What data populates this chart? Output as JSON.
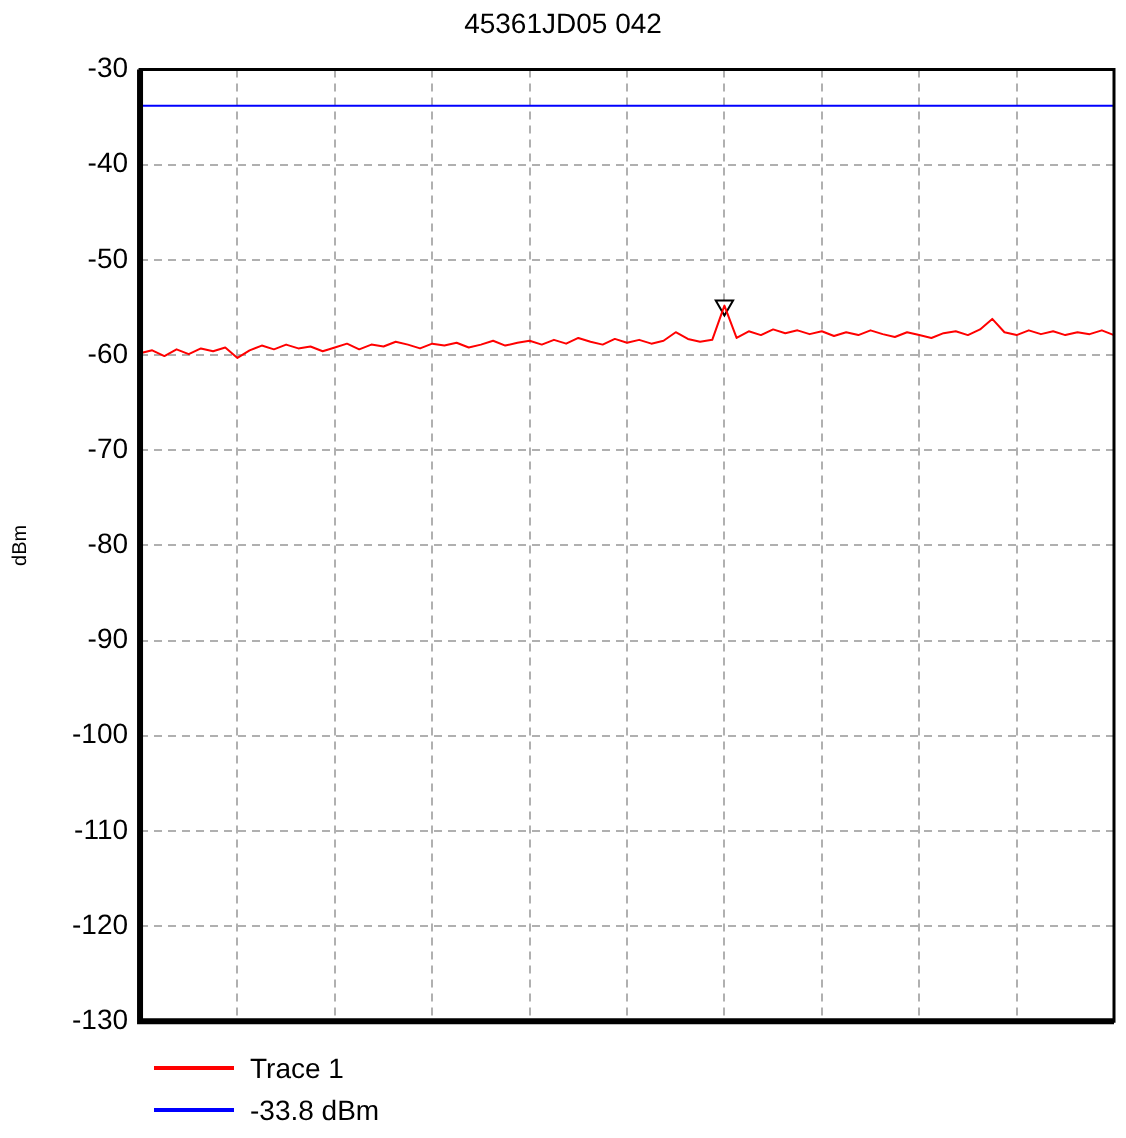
{
  "chart_data": {
    "type": "line",
    "title": "45361JD05 042",
    "ylabel": "dBm",
    "categories": [
      null,
      null,
      null,
      null,
      null,
      null,
      null,
      null,
      null,
      null,
      null,
      null,
      null,
      null,
      null,
      null,
      null,
      null,
      null,
      null,
      null,
      null,
      null,
      null,
      null,
      null,
      null,
      null,
      null,
      null,
      null,
      null,
      null,
      null,
      null,
      null,
      null,
      null,
      null,
      null,
      null,
      null,
      null,
      null,
      null,
      null,
      null,
      null,
      null,
      null,
      null,
      null,
      null,
      null,
      null,
      null,
      null,
      null,
      null,
      null,
      null,
      null,
      null,
      null,
      null,
      null,
      null,
      null,
      null,
      null,
      null,
      null,
      null,
      null,
      null,
      null,
      null,
      null,
      null,
      null,
      null
    ],
    "ylim": [
      -130,
      -30
    ],
    "yticks": [
      -130,
      -120,
      -110,
      -100,
      -90,
      -80,
      -70,
      -60,
      -50,
      -40,
      -30
    ],
    "tick_labels": "y",
    "grid": true,
    "legend": "bottom left",
    "marker": "none",
    "line_style": "solid",
    "series": [
      {
        "name": "Trace 1",
        "color": "#ff0000",
        "values": [
          -59.8,
          -59.5,
          -60.1,
          -59.4,
          -59.9,
          -59.3,
          -59.6,
          -59.2,
          -60.3,
          -59.5,
          -59.0,
          -59.4,
          -58.9,
          -59.3,
          -59.1,
          -59.6,
          -59.2,
          -58.8,
          -59.4,
          -58.9,
          -59.1,
          -58.6,
          -58.9,
          -59.3,
          -58.8,
          -59.0,
          -58.7,
          -59.2,
          -58.9,
          -58.5,
          -59.0,
          -58.7,
          -58.5,
          -58.9,
          -58.4,
          -58.8,
          -58.2,
          -58.6,
          -58.9,
          -58.3,
          -58.7,
          -58.4,
          -58.8,
          -58.5,
          -57.6,
          -58.3,
          -58.6,
          -58.4,
          -54.8,
          -58.2,
          -57.5,
          -57.9,
          -57.3,
          -57.7,
          -57.4,
          -57.8,
          -57.5,
          -58.0,
          -57.6,
          -57.9,
          -57.4,
          -57.8,
          -58.1,
          -57.6,
          -57.9,
          -58.2,
          -57.7,
          -57.5,
          -57.9,
          -57.3,
          -56.2,
          -57.6,
          -57.9,
          -57.4,
          -57.8,
          -57.5,
          -57.9,
          -57.6,
          -57.8,
          -57.4,
          -57.9
        ]
      },
      {
        "name": "-33.8 dBm",
        "color": "#0000ff",
        "values": [
          -33.8,
          -33.8,
          -33.8,
          -33.8,
          -33.8,
          -33.8,
          -33.8,
          -33.8,
          -33.8,
          -33.8,
          -33.8,
          -33.8,
          -33.8,
          -33.8,
          -33.8,
          -33.8,
          -33.8,
          -33.8,
          -33.8,
          -33.8,
          -33.8,
          -33.8,
          -33.8,
          -33.8,
          -33.8,
          -33.8,
          -33.8,
          -33.8,
          -33.8,
          -33.8,
          -33.8,
          -33.8,
          -33.8,
          -33.8,
          -33.8,
          -33.8,
          -33.8,
          -33.8,
          -33.8,
          -33.8,
          -33.8,
          -33.8,
          -33.8,
          -33.8,
          -33.8,
          -33.8,
          -33.8,
          -33.8,
          -33.8,
          -33.8,
          -33.8,
          -33.8,
          -33.8,
          -33.8,
          -33.8,
          -33.8,
          -33.8,
          -33.8,
          -33.8,
          -33.8,
          -33.8,
          -33.8,
          -33.8,
          -33.8,
          -33.8,
          -33.8,
          -33.8,
          -33.8,
          -33.8,
          -33.8,
          -33.8,
          -33.8,
          -33.8,
          -33.8,
          -33.8,
          -33.8,
          -33.8,
          -33.8,
          -33.8,
          -33.8,
          -33.8
        ]
      },
      {
        "type": "scatter",
        "marker": "triangle",
        "color": "#000000",
        "values": [
          null,
          null,
          null,
          null,
          null,
          null,
          null,
          null,
          null,
          null,
          null,
          null,
          null,
          null,
          null,
          null,
          null,
          null,
          null,
          null,
          null,
          null,
          null,
          null,
          null,
          null,
          null,
          null,
          null,
          null,
          null,
          null,
          null,
          null,
          null,
          null,
          null,
          null,
          null,
          null,
          null,
          null,
          null,
          null,
          null,
          null,
          null,
          null,
          -54.8,
          null,
          null,
          null,
          null,
          null,
          null,
          null,
          null,
          null,
          null,
          null,
          null,
          null,
          null,
          null,
          null,
          null,
          null,
          null,
          null,
          null,
          null,
          null,
          null,
          null,
          null,
          null,
          null,
          null,
          null,
          null,
          null
        ]
      }
    ]
  }
}
